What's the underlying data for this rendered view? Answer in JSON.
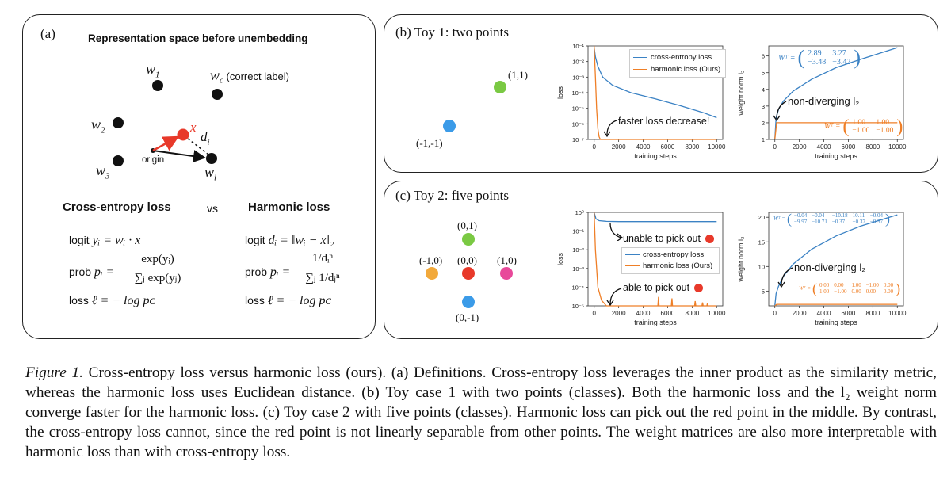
{
  "panel_a": {
    "label": "(a)",
    "title": "Representation space before unembedding",
    "points": {
      "w1": "w",
      "w1_sub": "1",
      "wc": "w",
      "wc_sub": "c",
      "wc_note": "(correct label)",
      "w2": "w",
      "w2_sub": "2",
      "w3": "w",
      "w3_sub": "3",
      "wi": "w",
      "wi_sub": "i",
      "x": "x",
      "di": "d",
      "di_sub": "i",
      "origin": "origin"
    },
    "ce_heading": "Cross-entropy loss",
    "vs": "vs",
    "harmonic_heading": "Harmonic loss",
    "ce": {
      "logit": "logit",
      "logit_expr": "yᵢ = wᵢ · x",
      "prob": "prob",
      "prob_lhs": "pᵢ =",
      "prob_num": "exp(yᵢ)",
      "prob_den": "∑ⱼ exp(yⱼ)",
      "loss": "loss",
      "loss_expr": "ℓ = − log pᴄ"
    },
    "harm": {
      "logit": "logit",
      "logit_expr": "dᵢ = ‖wᵢ − x‖₂",
      "prob": "prob",
      "prob_lhs": "pᵢ =",
      "prob_num": "1/dᵢⁿ",
      "prob_den": "∑ⱼ 1/dⱼⁿ",
      "loss": "loss",
      "loss_expr": "ℓ = − log pᴄ"
    }
  },
  "panel_b": {
    "label": "(b) Toy 1: two points",
    "points": [
      {
        "label": "(1,1)",
        "color": "#7ac943"
      },
      {
        "label": "(-1,-1)",
        "color": "#3b9be8"
      }
    ],
    "loss_annotation": "faster loss decrease!",
    "norm_annotation": "non-diverging l₂",
    "matrix_ce": {
      "lhs": "Wᵀ =",
      "rows": [
        [
          "2.89",
          "3.27"
        ],
        [
          "−3.48",
          "−3.42"
        ]
      ]
    },
    "matrix_h": {
      "lhs": "Wᵀ =",
      "rows": [
        [
          "1.00",
          "1.00"
        ],
        [
          "−1.00",
          "−1.00"
        ]
      ]
    }
  },
  "panel_c": {
    "label": "(c) Toy 2: five points",
    "points": [
      {
        "label": "(0,1)",
        "color": "#7ac943"
      },
      {
        "label": "(-1,0)",
        "color": "#f2a93b"
      },
      {
        "label": "(0,0)",
        "color": "#e8392a"
      },
      {
        "label": "(1,0)",
        "color": "#e8499a"
      },
      {
        "label": "(0,-1)",
        "color": "#3b9be8"
      }
    ],
    "loss_annotation_ce": "unable to pick out",
    "loss_annotation_h": "able to pick out",
    "norm_annotation": "non-diverging l₂",
    "matrix_ce": {
      "lhs": "Wᵀ =",
      "rows": [
        [
          "−0.04",
          "−0.04",
          "−10.18",
          "10.11",
          "−0.04"
        ],
        [
          "−9.97",
          "−10.71",
          "−0.37",
          "−0.37",
          "−0.37"
        ]
      ]
    },
    "matrix_h": {
      "lhs": "Wᵀ =",
      "rows": [
        [
          "0.00",
          "0.00",
          "1.00",
          "−1.00",
          "0.00"
        ],
        [
          "1.00",
          "−1.00",
          "0.00",
          "0.00",
          "0.00"
        ]
      ]
    }
  },
  "colors": {
    "ce": "#3b82c4",
    "harmonic": "#ef7f27",
    "red_point": "#e8392a"
  },
  "chart_data": [
    {
      "id": "b-loss",
      "type": "line",
      "xlabel": "training steps",
      "ylabel": "loss",
      "xlim": [
        0,
        10000
      ],
      "ylim": [
        1e-07,
        0.1
      ],
      "yscale": "log",
      "xticks": [
        "0",
        "2000",
        "4000",
        "6000",
        "8000",
        "10000"
      ],
      "yticks": [
        "10⁻⁷",
        "10⁻⁶",
        "10⁻⁵",
        "10⁻⁴",
        "10⁻³",
        "10⁻²",
        "10⁻¹"
      ],
      "legend_position": "top-right",
      "series": [
        {
          "name": "cross-entropy loss",
          "color": "#3b82c4",
          "x": [
            0,
            100,
            300,
            700,
            1500,
            3000,
            5000,
            7000,
            9000,
            10000
          ],
          "y": [
            0.08,
            0.02,
            0.005,
            0.001,
            0.0003,
            0.0001,
            4e-05,
            1.5e-05,
            5e-06,
            2.5e-06
          ]
        },
        {
          "name": "harmonic loss (Ours)",
          "color": "#ef7f27",
          "x": [
            0,
            100,
            200,
            300,
            400,
            500,
            10000
          ],
          "y": [
            0.1,
            0.001,
            1e-05,
            5e-07,
            1.5e-07,
            1e-07,
            1e-07
          ]
        }
      ]
    },
    {
      "id": "b-norm",
      "type": "line",
      "xlabel": "training steps",
      "ylabel": "weight norm l₂",
      "xlim": [
        0,
        10000
      ],
      "ylim": [
        1,
        6.6
      ],
      "xticks": [
        "0",
        "2000",
        "4000",
        "6000",
        "8000",
        "10000"
      ],
      "yticks": [
        "1",
        "2",
        "3",
        "4",
        "5",
        "6"
      ],
      "series": [
        {
          "name": "cross-entropy loss",
          "color": "#3b82c4",
          "x": [
            0,
            100,
            300,
            700,
            1500,
            3000,
            5000,
            7000,
            10000
          ],
          "y": [
            1.0,
            2.3,
            2.8,
            3.3,
            3.9,
            4.6,
            5.3,
            5.8,
            6.5
          ]
        },
        {
          "name": "harmonic loss (Ours)",
          "color": "#ef7f27",
          "x": [
            0,
            150,
            300,
            10000
          ],
          "y": [
            1.0,
            2.0,
            2.0,
            2.0
          ]
        }
      ]
    },
    {
      "id": "c-loss",
      "type": "line",
      "xlabel": "training steps",
      "ylabel": "loss",
      "xlim": [
        0,
        10000
      ],
      "ylim": [
        1e-05,
        1
      ],
      "yscale": "log",
      "xticks": [
        "0",
        "2000",
        "4000",
        "6000",
        "8000",
        "10000"
      ],
      "yticks": [
        "10⁻⁵",
        "10⁻⁴",
        "10⁻³",
        "10⁻²",
        "10⁻¹",
        "10⁰"
      ],
      "legend_position": "center-right",
      "series": [
        {
          "name": "cross-entropy loss",
          "color": "#3b82c4",
          "x": [
            0,
            150,
            400,
            1000,
            2000,
            10000
          ],
          "y": [
            1.0,
            0.45,
            0.36,
            0.33,
            0.32,
            0.32
          ]
        },
        {
          "name": "harmonic loss (Ours)",
          "color": "#ef7f27",
          "x": [
            0,
            100,
            300,
            600,
            1000,
            2000,
            5200,
            5250,
            5300,
            6000,
            6300,
            6350,
            6400,
            7500,
            8000,
            8200,
            8250,
            8300,
            8800,
            8850,
            8900,
            9200,
            9250,
            9300,
            10000
          ],
          "y": [
            1.0,
            0.01,
            0.0001,
            2e-05,
            1e-05,
            1e-05,
            1e-05,
            3e-05,
            1e-05,
            1e-05,
            1e-05,
            2.5e-05,
            1e-05,
            1e-05,
            1e-05,
            1e-05,
            1.8e-05,
            1e-05,
            1e-05,
            1.5e-05,
            1e-05,
            1e-05,
            1.4e-05,
            1e-05,
            1e-05
          ]
        }
      ]
    },
    {
      "id": "c-norm",
      "type": "line",
      "xlabel": "training steps",
      "ylabel": "weight norm l₂",
      "xlim": [
        0,
        10000
      ],
      "ylim": [
        2,
        21
      ],
      "xticks": [
        "0",
        "2000",
        "4000",
        "6000",
        "8000",
        "10000"
      ],
      "yticks": [
        "5",
        "10",
        "15",
        "20"
      ],
      "series": [
        {
          "name": "cross-entropy loss",
          "color": "#3b82c4",
          "x": [
            0,
            100,
            300,
            700,
            1500,
            3000,
            5000,
            7000,
            10000
          ],
          "y": [
            2.0,
            4.5,
            6.0,
            8.0,
            10.5,
            13.5,
            16.2,
            18.2,
            20.5
          ]
        },
        {
          "name": "harmonic loss (Ours)",
          "color": "#ef7f27",
          "x": [
            0,
            150,
            300,
            10000
          ],
          "y": [
            2.0,
            2.3,
            2.3,
            2.3
          ]
        }
      ]
    }
  ],
  "caption": {
    "label": "Figure 1.",
    "text": "Cross-entropy loss versus harmonic loss (ours). (a) Definitions. Cross-entropy loss leverages the inner product as the similarity metric, whereas the harmonic loss uses Euclidean distance. (b) Toy case 1 with two points (classes). Both the harmonic loss and the l₂ weight norm converge faster for the harmonic loss. (c) Toy case 2 with five points (classes). Harmonic loss can pick out the red point in the middle. By contrast, the cross-entropy loss cannot, since the red point is not linearly separable from other points. The weight matrices are also more interpretable with harmonic loss than with cross-entropy loss."
  }
}
